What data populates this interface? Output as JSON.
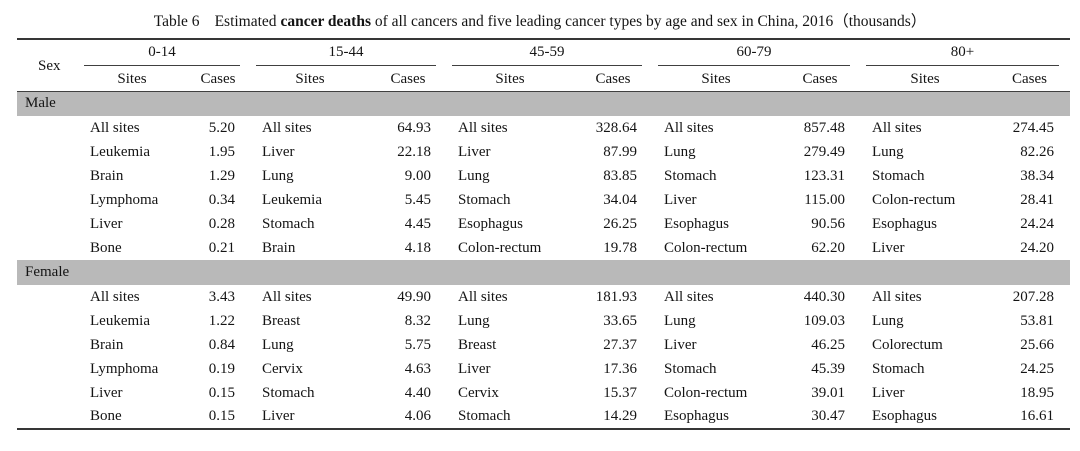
{
  "caption": {
    "label": "Table 6",
    "text_before_bold": "Estimated ",
    "bold_text": "cancer deaths",
    "text_after_bold": " of all cancers and five leading cancer types by age and sex in China, 2016（thousands）"
  },
  "header": {
    "sex_label": "Sex",
    "age_groups": [
      "0-14",
      "15-44",
      "45-59",
      "60-79",
      "80+"
    ],
    "sub_headers": [
      "Sites",
      "Cases"
    ]
  },
  "sections": [
    {
      "sex": "Male",
      "rows": [
        [
          [
            "All sites",
            "5.20"
          ],
          [
            "All sites",
            "64.93"
          ],
          [
            "All sites",
            "328.64"
          ],
          [
            "All sites",
            "857.48"
          ],
          [
            "All sites",
            "274.45"
          ]
        ],
        [
          [
            "Leukemia",
            "1.95"
          ],
          [
            "Liver",
            "22.18"
          ],
          [
            "Liver",
            "87.99"
          ],
          [
            "Lung",
            "279.49"
          ],
          [
            "Lung",
            "82.26"
          ]
        ],
        [
          [
            "Brain",
            "1.29"
          ],
          [
            "Lung",
            "9.00"
          ],
          [
            "Lung",
            "83.85"
          ],
          [
            "Stomach",
            "123.31"
          ],
          [
            "Stomach",
            "38.34"
          ]
        ],
        [
          [
            "Lymphoma",
            "0.34"
          ],
          [
            "Leukemia",
            "5.45"
          ],
          [
            "Stomach",
            "34.04"
          ],
          [
            "Liver",
            "115.00"
          ],
          [
            "Colon-rectum",
            "28.41"
          ]
        ],
        [
          [
            "Liver",
            "0.28"
          ],
          [
            "Stomach",
            "4.45"
          ],
          [
            "Esophagus",
            "26.25"
          ],
          [
            "Esophagus",
            "90.56"
          ],
          [
            "Esophagus",
            "24.24"
          ]
        ],
        [
          [
            "Bone",
            "0.21"
          ],
          [
            "Brain",
            "4.18"
          ],
          [
            "Colon-rectum",
            "19.78"
          ],
          [
            "Colon-rectum",
            "62.20"
          ],
          [
            "Liver",
            "24.20"
          ]
        ]
      ]
    },
    {
      "sex": "Female",
      "rows": [
        [
          [
            "All sites",
            "3.43"
          ],
          [
            "All sites",
            "49.90"
          ],
          [
            "All sites",
            "181.93"
          ],
          [
            "All sites",
            "440.30"
          ],
          [
            "All sites",
            "207.28"
          ]
        ],
        [
          [
            "Leukemia",
            "1.22"
          ],
          [
            "Breast",
            "8.32"
          ],
          [
            "Lung",
            "33.65"
          ],
          [
            "Lung",
            "109.03"
          ],
          [
            "Lung",
            "53.81"
          ]
        ],
        [
          [
            "Brain",
            "0.84"
          ],
          [
            "Lung",
            "5.75"
          ],
          [
            "Breast",
            "27.37"
          ],
          [
            "Liver",
            "46.25"
          ],
          [
            "Colorectum",
            "25.66"
          ]
        ],
        [
          [
            "Lymphoma",
            "0.19"
          ],
          [
            "Cervix",
            "4.63"
          ],
          [
            "Liver",
            "17.36"
          ],
          [
            "Stomach",
            "45.39"
          ],
          [
            "Stomach",
            "24.25"
          ]
        ],
        [
          [
            "Liver",
            "0.15"
          ],
          [
            "Stomach",
            "4.40"
          ],
          [
            "Cervix",
            "15.37"
          ],
          [
            "Colon-rectum",
            "39.01"
          ],
          [
            "Liver",
            "18.95"
          ]
        ],
        [
          [
            "Bone",
            "0.15"
          ],
          [
            "Liver",
            "4.06"
          ],
          [
            "Stomach",
            "14.29"
          ],
          [
            "Esophagus",
            "30.47"
          ],
          [
            "Esophagus",
            "16.61"
          ]
        ]
      ]
    }
  ],
  "colors": {
    "section_band": "#b9b9b9",
    "rule": "#363636",
    "text": "#141414"
  }
}
